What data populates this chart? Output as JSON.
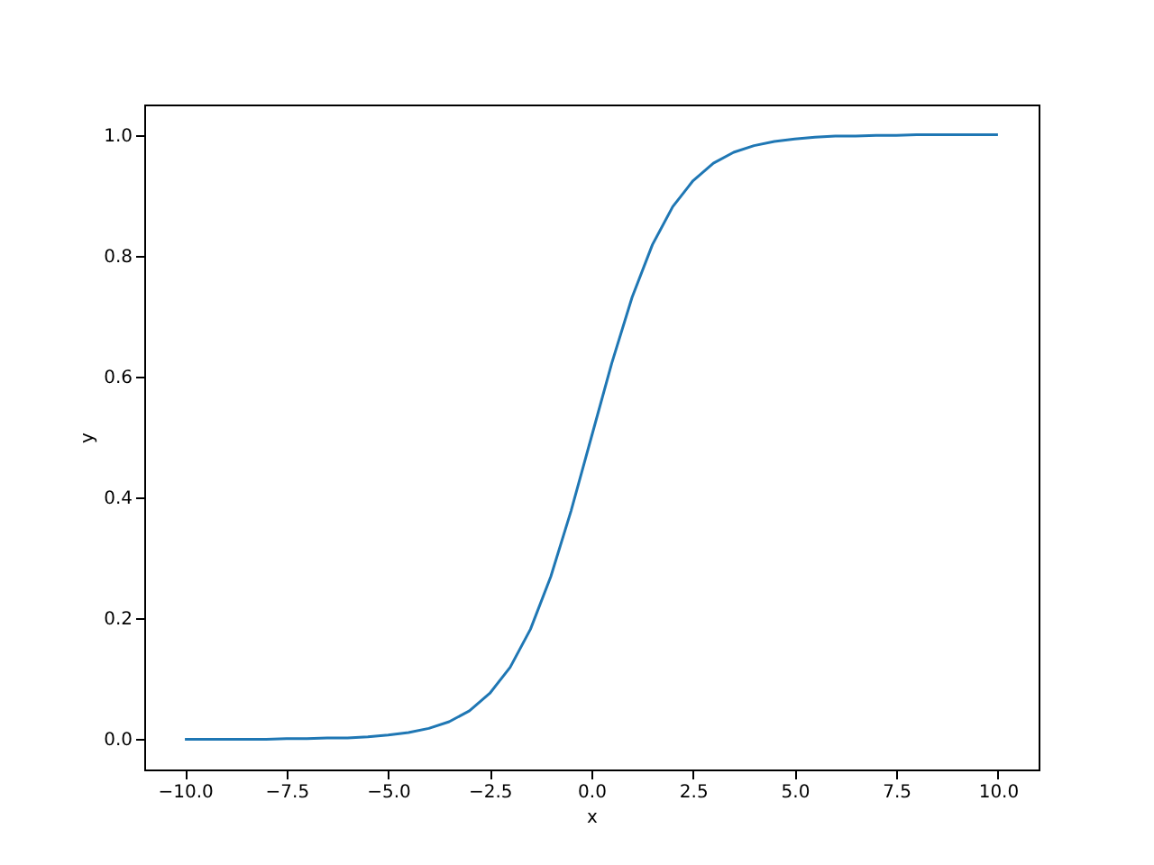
{
  "chart_data": {
    "type": "line",
    "xlabel": "x",
    "ylabel": "y",
    "x": [
      -10,
      -9.5,
      -9,
      -8.5,
      -8,
      -7.5,
      -7,
      -6.5,
      -6,
      -5.5,
      -5,
      -4.5,
      -4,
      -3.5,
      -3,
      -2.5,
      -2,
      -1.5,
      -1,
      -0.5,
      0,
      0.5,
      1,
      1.5,
      2,
      2.5,
      3,
      3.5,
      4,
      4.5,
      5,
      5.5,
      6,
      6.5,
      7,
      7.5,
      8,
      8.5,
      9,
      9.5,
      10
    ],
    "series": [
      {
        "color": "#1f77b4",
        "values": [
          0.0,
          0.0,
          0.0,
          0.0,
          0.0,
          0.001,
          0.001,
          0.002,
          0.002,
          0.004,
          0.007,
          0.011,
          0.018,
          0.029,
          0.047,
          0.076,
          0.119,
          0.182,
          0.269,
          0.378,
          0.5,
          0.622,
          0.731,
          0.818,
          0.881,
          0.924,
          0.953,
          0.971,
          0.982,
          0.989,
          0.993,
          0.996,
          0.998,
          0.998,
          0.999,
          0.999,
          1.0,
          1.0,
          1.0,
          1.0,
          1.0
        ]
      }
    ],
    "xlim": [
      -11,
      11
    ],
    "ylim": [
      -0.05,
      1.05
    ],
    "xticks": [
      {
        "value": -10,
        "label": "−10.0"
      },
      {
        "value": -7.5,
        "label": "−7.5"
      },
      {
        "value": -5,
        "label": "−5.0"
      },
      {
        "value": -2.5,
        "label": "−2.5"
      },
      {
        "value": 0,
        "label": "0.0"
      },
      {
        "value": 2.5,
        "label": "2.5"
      },
      {
        "value": 5,
        "label": "5.0"
      },
      {
        "value": 7.5,
        "label": "7.5"
      },
      {
        "value": 10,
        "label": "10.0"
      }
    ],
    "yticks": [
      {
        "value": 0,
        "label": "0.0"
      },
      {
        "value": 0.2,
        "label": "0.2"
      },
      {
        "value": 0.4,
        "label": "0.4"
      },
      {
        "value": 0.6,
        "label": "0.6"
      },
      {
        "value": 0.8,
        "label": "0.8"
      },
      {
        "value": 1,
        "label": "1.0"
      }
    ]
  }
}
